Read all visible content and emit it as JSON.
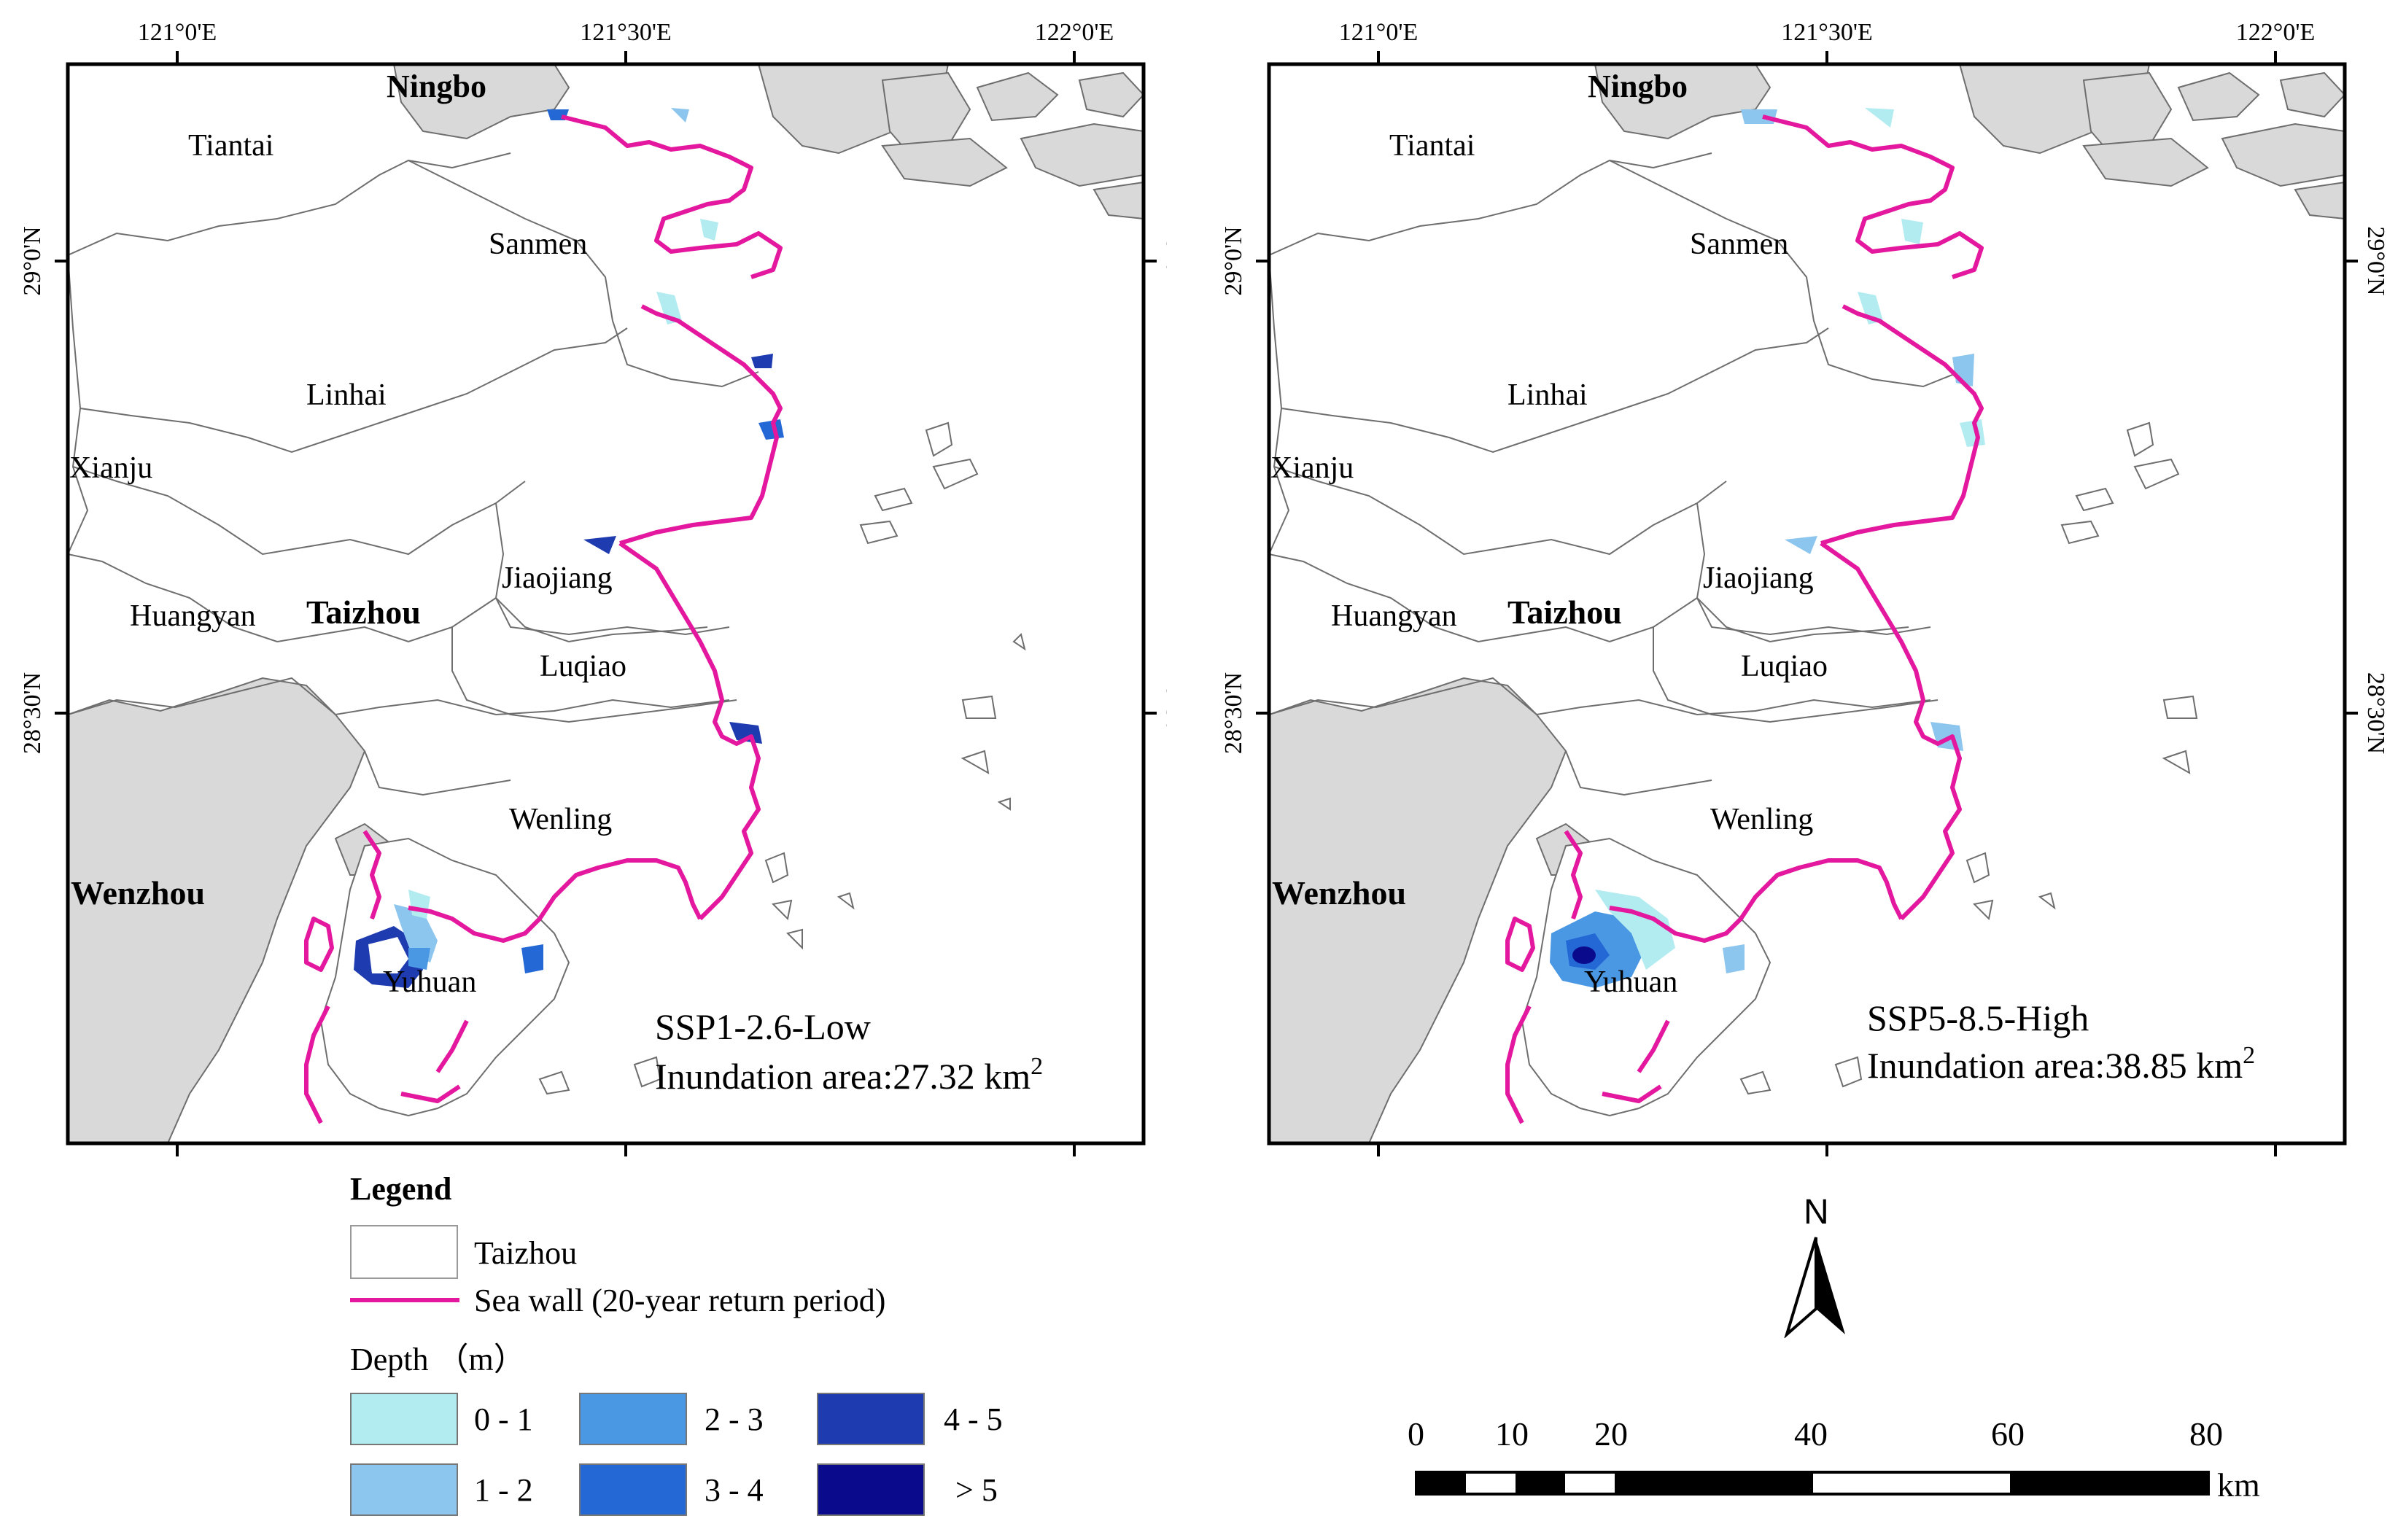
{
  "lon_ticks": [
    "121°0'E",
    "121°30'E",
    "122°0'E"
  ],
  "lat_ticks": [
    "29°0'N",
    "28°30'N"
  ],
  "panels": [
    {
      "scenario": "SSP1-2.6-Low",
      "area_label": "Inundation area:27.32 km",
      "area_sup": "2",
      "inundation_area_km2": 27.32
    },
    {
      "scenario": "SSP5-8.5-High",
      "area_label": "Inundation area:38.85 km",
      "area_sup": "2",
      "inundation_area_km2": 38.85
    }
  ],
  "place_labels": {
    "ningbo": "Ningbo",
    "tiantai": "Tiantai",
    "sanmen": "Sanmen",
    "linhai": "Linhai",
    "xianju": "Xianju",
    "jiaojiang": "Jiaojiang",
    "huangyan": "Huangyan",
    "taizhou": "Taizhou",
    "luqiao": "Luqiao",
    "wenling": "Wenling",
    "wenzhou": "Wenzhou",
    "yuhuan": "Yuhuan"
  },
  "legend": {
    "title": "Legend",
    "taizhou": "Taizhou",
    "seawall": "Sea wall (20-year return period)",
    "depth_title": "Depth （m）",
    "classes": [
      {
        "label": "0 - 1",
        "color": "#b3ecf0"
      },
      {
        "label": "1 - 2",
        "color": "#8cc6ee"
      },
      {
        "label": "2 - 3",
        "color": "#4a98e3"
      },
      {
        "label": "3 - 4",
        "color": "#2468d6"
      },
      {
        "label": "4 - 5",
        "color": "#1f3bb0"
      },
      {
        "label": "> 5",
        "color": "#0a0a8c"
      }
    ]
  },
  "colors": {
    "seawall": "#e3189e",
    "land_outside": "#d9d9d9",
    "boundary": "#6e6e6e"
  },
  "north_label": "N",
  "scale": {
    "ticks": [
      "0",
      "10",
      "20",
      "40",
      "60",
      "80"
    ],
    "unit": "km"
  }
}
